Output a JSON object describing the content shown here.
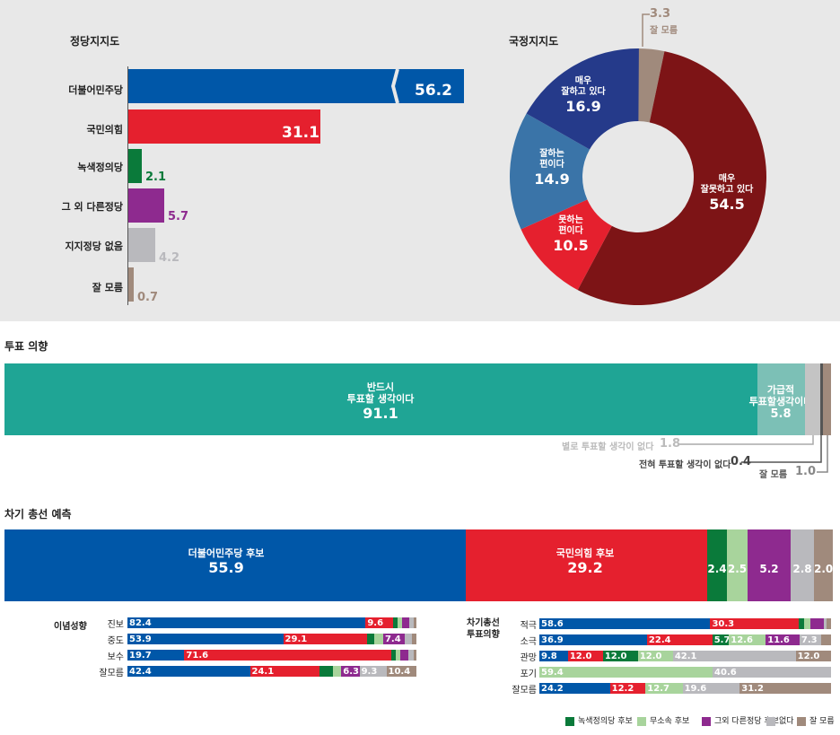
{
  "party": {
    "title": "정당지지도",
    "items": [
      {
        "label": "더불어민주당",
        "value": "56.2",
        "color": "#0057a8"
      },
      {
        "label": "국민의힘",
        "value": "31.1",
        "color": "#e5202e"
      },
      {
        "label": "녹색정의당",
        "value": "2.1",
        "color": "#0a7a3a"
      },
      {
        "label": "그 외 다른정당",
        "value": "5.7",
        "color": "#8e2a8f"
      },
      {
        "label": "지지정당 없음",
        "value": "4.2",
        "color": "#b9b9bd"
      },
      {
        "label": "잘 모름",
        "value": "0.7",
        "color": "#a08a7c"
      }
    ]
  },
  "approval": {
    "title": "국정지지도",
    "slices": [
      {
        "label1": "매우",
        "label2": "잘못하고 있다",
        "value": "54.5",
        "color": "#7d1416"
      },
      {
        "label1": "못하는",
        "label2": "편이다",
        "value": "10.5",
        "color": "#e5202e"
      },
      {
        "label1": "잘하는",
        "label2": "편이다",
        "value": "14.9",
        "color": "#3a74a8"
      },
      {
        "label1": "매우",
        "label2": "잘하고 있다",
        "value": "16.9",
        "color": "#253a8a"
      },
      {
        "label1": "잘 모름",
        "label2": "",
        "value": "3.3",
        "color": "#a08a7c"
      }
    ]
  },
  "vote": {
    "title": "투표 의향",
    "must_l1": "반드시",
    "must_l2": "투표할 생각이다",
    "must_v": "91.1",
    "prob_l1": "가급적",
    "prob_l2": "투표할생각이다",
    "prob_v": "5.8",
    "notmuch_l": "별로 투표할 생각이 없다",
    "notmuch_v": "1.8",
    "never_l": "전혀 투표할 생각이 없다",
    "never_v": "0.4",
    "dk_l": "잘 모름",
    "dk_v": "1.0",
    "colors": {
      "must": "#1fa595",
      "prob": "#7cc0b6",
      "notmuch": "#c4c4c4",
      "never": "#555555",
      "dk": "#a08a7c"
    }
  },
  "election": {
    "title": "차기 총선 예측",
    "dem_l": "더불어민주당 후보",
    "dem_v": "55.9",
    "ppp_l": "국민의힘 후보",
    "ppp_v": "29.2",
    "others": [
      "2.4",
      "2.5",
      "5.2",
      "2.8",
      "2.0"
    ]
  },
  "chart_data": [
    {
      "type": "bar",
      "title": "정당지지도",
      "categories": [
        "더불어민주당",
        "국민의힘",
        "녹색정의당",
        "그 외 다른정당",
        "지지정당 없음",
        "잘 모름"
      ],
      "values": [
        56.2,
        31.1,
        2.1,
        5.7,
        4.2,
        0.7
      ]
    },
    {
      "type": "pie",
      "title": "국정지지도",
      "categories": [
        "매우 잘못하고 있다",
        "못하는 편이다",
        "잘하는 편이다",
        "매우 잘하고 있다",
        "잘 모름"
      ],
      "values": [
        54.5,
        10.5,
        14.9,
        16.9,
        3.3
      ]
    },
    {
      "type": "bar",
      "title": "투표 의향",
      "categories": [
        "반드시 투표할 생각이다",
        "가급적 투표할생각이다",
        "별로 투표할 생각이 없다",
        "전혀 투표할 생각이 없다",
        "잘 모름"
      ],
      "values": [
        91.1,
        5.8,
        1.8,
        0.4,
        1.0
      ]
    },
    {
      "type": "bar",
      "title": "차기 총선 예측",
      "categories": [
        "더불어민주당 후보",
        "국민의힘 후보",
        "녹색정의당 후보",
        "무소속 후보",
        "그외 다른정당 후보",
        "없다",
        "잘 모름"
      ],
      "values": [
        55.9,
        29.2,
        2.4,
        2.5,
        5.2,
        2.8,
        2.0
      ]
    },
    {
      "type": "bar",
      "title": "이념성향",
      "categories": [
        "진보",
        "중도",
        "보수",
        "잘모름"
      ],
      "series": [
        {
          "name": "더불어민주당 후보",
          "values": [
            82.4,
            53.9,
            19.7,
            42.4
          ]
        },
        {
          "name": "국민의힘 후보",
          "values": [
            9.6,
            29.1,
            71.6,
            24.1
          ]
        },
        {
          "name": "그외 다른정당 후보",
          "values": [
            null,
            7.4,
            null,
            6.3
          ]
        },
        {
          "name": "없다",
          "values": [
            null,
            null,
            null,
            9.3
          ]
        },
        {
          "name": "잘 모름",
          "values": [
            null,
            null,
            null,
            10.4
          ]
        }
      ]
    },
    {
      "type": "bar",
      "title": "차기총선 투표의향",
      "categories": [
        "적극",
        "소극",
        "관망",
        "포기",
        "잘모름"
      ],
      "series": [
        {
          "name": "더불어민주당 후보",
          "values": [
            58.6,
            36.9,
            9.8,
            null,
            24.2
          ]
        },
        {
          "name": "국민의힘 후보",
          "values": [
            30.3,
            22.4,
            12.0,
            null,
            12.2
          ]
        },
        {
          "name": "녹색정의당 후보",
          "values": [
            null,
            5.7,
            12.0,
            null,
            null
          ]
        },
        {
          "name": "무소속 후보",
          "values": [
            null,
            12.6,
            12.0,
            59.4,
            12.7
          ]
        },
        {
          "name": "그외 다른정당 후보",
          "values": [
            null,
            11.6,
            null,
            null,
            null
          ]
        },
        {
          "name": "없다",
          "values": [
            null,
            7.3,
            42.1,
            40.6,
            19.6
          ]
        },
        {
          "name": "잘 모름",
          "values": [
            null,
            null,
            12.0,
            null,
            31.2
          ]
        }
      ]
    }
  ],
  "ideology": {
    "title": "이념성향",
    "rows": [
      {
        "label": "진보",
        "segs": [
          {
            "v": "82.4",
            "w": 82.4,
            "c": "#0057a8"
          },
          {
            "v": "9.6",
            "w": 9.6,
            "c": "#e5202e"
          },
          {
            "v": "",
            "w": 1.5,
            "c": "#0a7a3a"
          },
          {
            "v": "",
            "w": 1.5,
            "c": "#a8d49c"
          },
          {
            "v": "",
            "w": 2.5,
            "c": "#8e2a8f"
          },
          {
            "v": "",
            "w": 1.5,
            "c": "#b9b9bd"
          },
          {
            "v": "",
            "w": 1.0,
            "c": "#a08a7c"
          }
        ]
      },
      {
        "label": "중도",
        "segs": [
          {
            "v": "53.9",
            "w": 53.9,
            "c": "#0057a8"
          },
          {
            "v": "29.1",
            "w": 29.1,
            "c": "#e5202e"
          },
          {
            "v": "",
            "w": 2.5,
            "c": "#0a7a3a"
          },
          {
            "v": "",
            "w": 3.0,
            "c": "#a8d49c"
          },
          {
            "v": "7.4",
            "w": 7.4,
            "c": "#8e2a8f"
          },
          {
            "v": "",
            "w": 2.5,
            "c": "#b9b9bd"
          },
          {
            "v": "",
            "w": 1.6,
            "c": "#a08a7c"
          }
        ]
      },
      {
        "label": "보수",
        "segs": [
          {
            "v": "19.7",
            "w": 19.7,
            "c": "#0057a8"
          },
          {
            "v": "71.6",
            "w": 71.6,
            "c": "#e5202e"
          },
          {
            "v": "",
            "w": 1.5,
            "c": "#0a7a3a"
          },
          {
            "v": "",
            "w": 1.5,
            "c": "#a8d49c"
          },
          {
            "v": "",
            "w": 3.0,
            "c": "#8e2a8f"
          },
          {
            "v": "",
            "w": 1.7,
            "c": "#b9b9bd"
          },
          {
            "v": "",
            "w": 1.0,
            "c": "#a08a7c"
          }
        ]
      },
      {
        "label": "잘모름",
        "segs": [
          {
            "v": "42.4",
            "w": 42.4,
            "c": "#0057a8"
          },
          {
            "v": "24.1",
            "w": 24.1,
            "c": "#e5202e"
          },
          {
            "v": "",
            "w": 4.5,
            "c": "#0a7a3a"
          },
          {
            "v": "",
            "w": 3.0,
            "c": "#a8d49c"
          },
          {
            "v": "6.3",
            "w": 6.3,
            "c": "#8e2a8f"
          },
          {
            "v": "9.3",
            "w": 9.3,
            "c": "#b9b9bd"
          },
          {
            "v": "10.4",
            "w": 10.4,
            "c": "#a08a7c"
          }
        ]
      }
    ]
  },
  "intent": {
    "title1": "차기총선",
    "title2": "투표의향",
    "rows": [
      {
        "label": "적극",
        "segs": [
          {
            "v": "58.6",
            "w": 58.6,
            "c": "#0057a8"
          },
          {
            "v": "30.3",
            "w": 30.3,
            "c": "#e5202e"
          },
          {
            "v": "",
            "w": 2.0,
            "c": "#0a7a3a"
          },
          {
            "v": "",
            "w": 2.0,
            "c": "#a8d49c"
          },
          {
            "v": "",
            "w": 4.5,
            "c": "#8e2a8f"
          },
          {
            "v": "",
            "w": 1.0,
            "c": "#b9b9bd"
          },
          {
            "v": "",
            "w": 1.6,
            "c": "#a08a7c"
          }
        ]
      },
      {
        "label": "소극",
        "segs": [
          {
            "v": "36.9",
            "w": 36.9,
            "c": "#0057a8"
          },
          {
            "v": "22.4",
            "w": 22.4,
            "c": "#e5202e"
          },
          {
            "v": "5.7",
            "w": 5.7,
            "c": "#0a7a3a"
          },
          {
            "v": "12.6",
            "w": 12.6,
            "c": "#a8d49c"
          },
          {
            "v": "11.6",
            "w": 11.6,
            "c": "#8e2a8f"
          },
          {
            "v": "7.3",
            "w": 7.3,
            "c": "#b9b9bd"
          },
          {
            "v": "",
            "w": 3.5,
            "c": "#a08a7c"
          }
        ]
      },
      {
        "label": "관망",
        "segs": [
          {
            "v": "9.8",
            "w": 9.8,
            "c": "#0057a8"
          },
          {
            "v": "12.0",
            "w": 12.0,
            "c": "#e5202e"
          },
          {
            "v": "12.0",
            "w": 12.0,
            "c": "#0a7a3a"
          },
          {
            "v": "12.0",
            "w": 12.0,
            "c": "#a8d49c"
          },
          {
            "v": "42.1",
            "w": 42.1,
            "c": "#b9b9bd"
          },
          {
            "v": "12.0",
            "w": 12.1,
            "c": "#a08a7c"
          }
        ]
      },
      {
        "label": "포기",
        "segs": [
          {
            "v": "59.4",
            "w": 59.4,
            "c": "#a8d49c"
          },
          {
            "v": "40.6",
            "w": 40.6,
            "c": "#b9b9bd"
          }
        ]
      },
      {
        "label": "잘모름",
        "segs": [
          {
            "v": "24.2",
            "w": 24.2,
            "c": "#0057a8"
          },
          {
            "v": "12.2",
            "w": 12.2,
            "c": "#e5202e"
          },
          {
            "v": "12.7",
            "w": 12.7,
            "c": "#a8d49c"
          },
          {
            "v": "19.6",
            "w": 19.6,
            "c": "#b9b9bd"
          },
          {
            "v": "31.2",
            "w": 31.3,
            "c": "#a08a7c"
          }
        ]
      }
    ]
  },
  "legend": [
    {
      "label": "녹색정의당 후보",
      "color": "#0a7a3a"
    },
    {
      "label": "무소속 후보",
      "color": "#a8d49c"
    },
    {
      "label": "그외 다른정당 후보",
      "color": "#8e2a8f"
    },
    {
      "label": "없다",
      "color": "#b9b9bd"
    },
    {
      "label": "잘 모름",
      "color": "#a08a7c"
    }
  ]
}
